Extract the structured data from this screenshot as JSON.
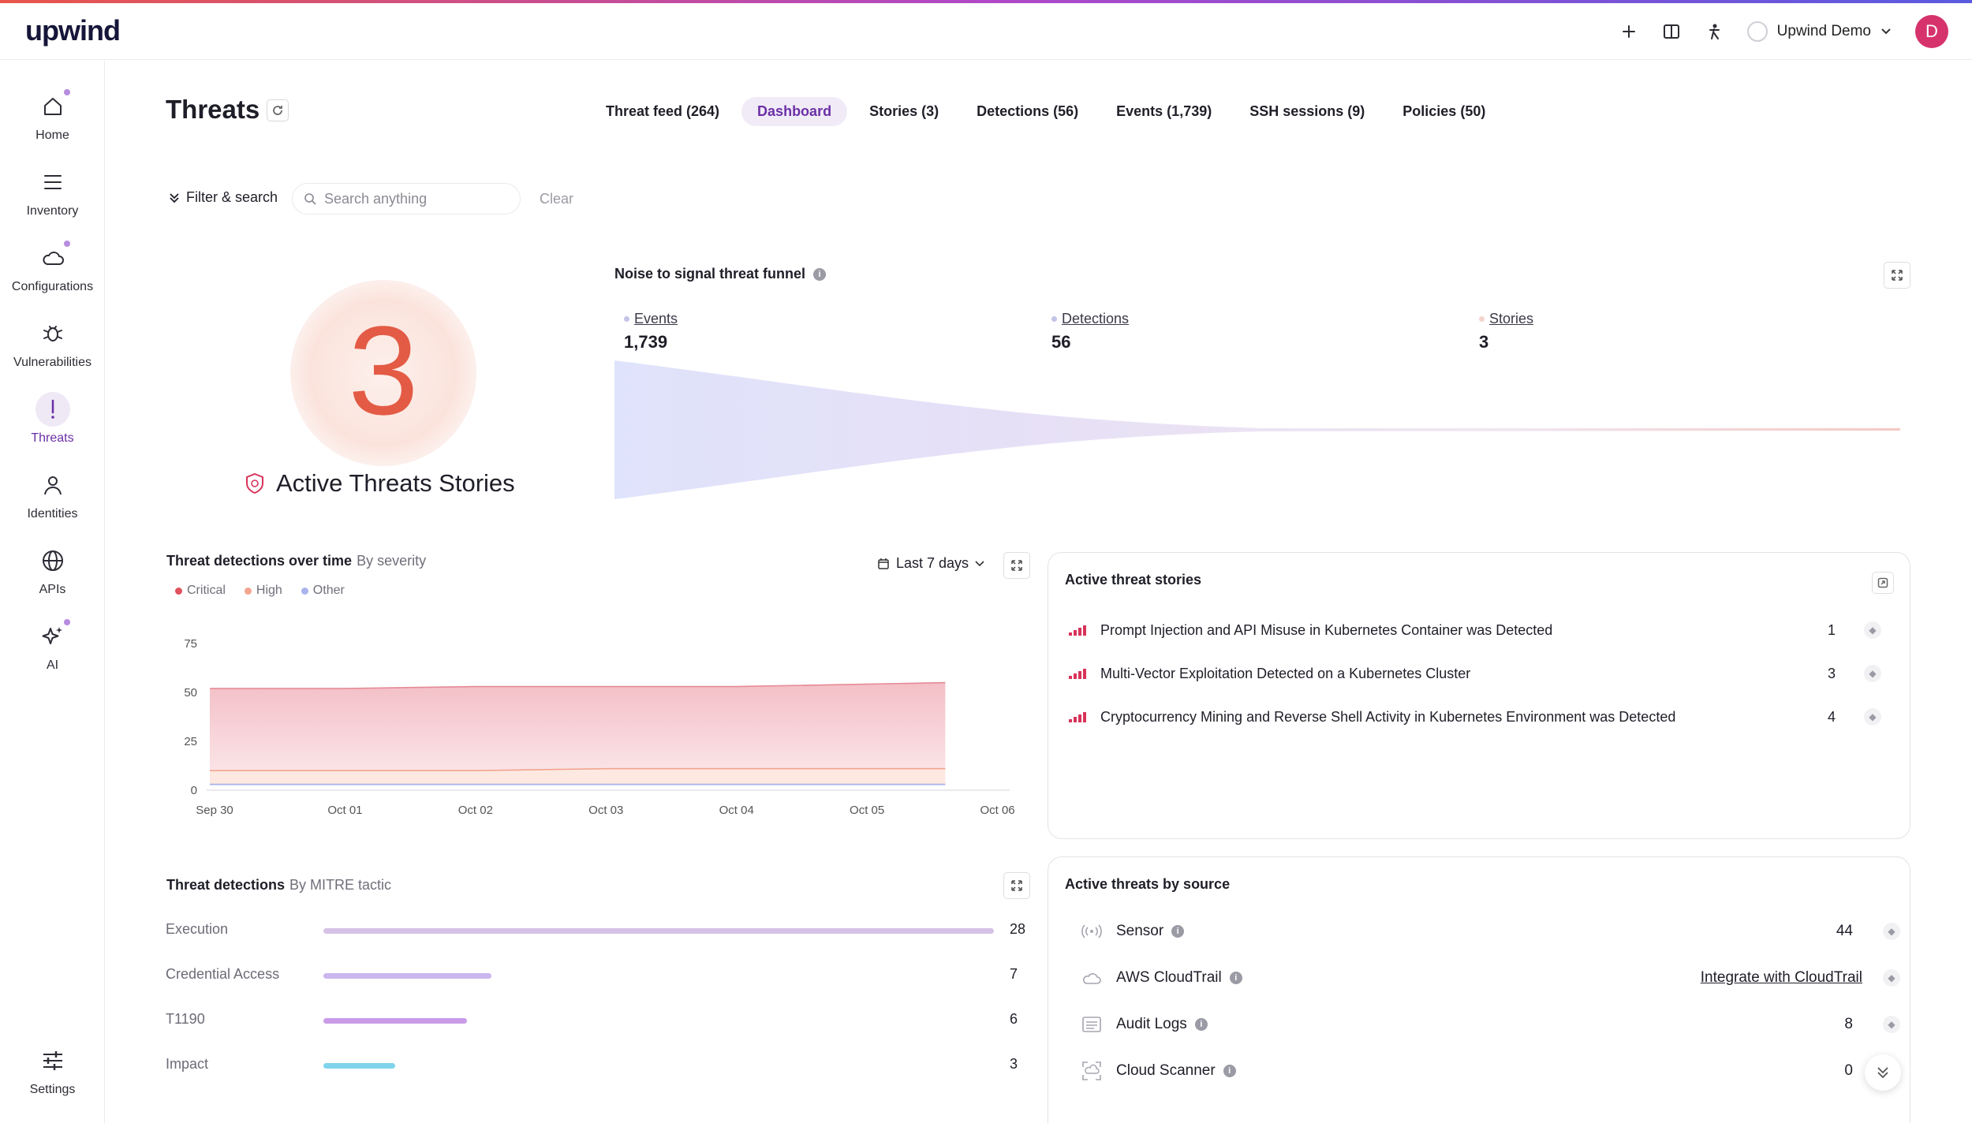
{
  "app": {
    "logo_text": "upwind",
    "org_name": "Upwind Demo",
    "avatar_letter": "D"
  },
  "sidebar": {
    "items": [
      {
        "label": "Home",
        "icon": "home-icon"
      },
      {
        "label": "Inventory",
        "icon": "list-icon"
      },
      {
        "label": "Configurations",
        "icon": "cloud-icon"
      },
      {
        "label": "Vulnerabilities",
        "icon": "bug-icon"
      },
      {
        "label": "Threats",
        "icon": "exclamation-icon"
      },
      {
        "label": "Identities",
        "icon": "person-icon"
      },
      {
        "label": "APIs",
        "icon": "globe-icon"
      },
      {
        "label": "AI",
        "icon": "sparkle-icon"
      }
    ],
    "settings_label": "Settings"
  },
  "header": {
    "title": "Threats",
    "tabs": [
      {
        "label": "Threat feed (264)"
      },
      {
        "label": "Dashboard"
      },
      {
        "label": "Stories (3)"
      },
      {
        "label": "Detections (56)"
      },
      {
        "label": "Events (1,739)"
      },
      {
        "label": "SSH sessions (9)"
      },
      {
        "label": "Policies (50)"
      }
    ],
    "active_tab": "Dashboard"
  },
  "filter": {
    "toggle_label": "Filter & search",
    "search_placeholder": "Search anything",
    "clear_label": "Clear"
  },
  "summary": {
    "active_count": "3",
    "label": "Active Threats Stories"
  },
  "funnel": {
    "title": "Noise to signal threat funnel",
    "stages": [
      {
        "label": "Events",
        "value": "1,739"
      },
      {
        "label": "Detections",
        "value": "56"
      },
      {
        "label": "Stories",
        "value": "3"
      }
    ]
  },
  "detections_over_time": {
    "title": "Threat detections over time",
    "subtitle": "By severity",
    "range": "Last 7 days",
    "legend": [
      {
        "label": "Critical",
        "color": "#e0525e"
      },
      {
        "label": "High",
        "color": "#f2a58e"
      },
      {
        "label": "Other",
        "color": "#a9b4ee"
      }
    ]
  },
  "chart_data": {
    "type": "area",
    "x": [
      "Sep 30",
      "Oct 01",
      "Oct 02",
      "Oct 03",
      "Oct 04",
      "Oct 05",
      "Oct 06"
    ],
    "categories": [
      "Sep 30",
      "Oct 01",
      "Oct 02",
      "Oct 03",
      "Oct 04",
      "Oct 05",
      "Oct 06"
    ],
    "series": [
      {
        "name": "Critical",
        "values": [
          52,
          52,
          53,
          53,
          53,
          55,
          null
        ]
      },
      {
        "name": "High",
        "values": [
          10,
          10,
          10,
          11,
          11,
          11,
          null
        ]
      },
      {
        "name": "Other",
        "values": [
          3,
          3,
          3,
          3,
          3,
          3,
          null
        ]
      }
    ],
    "yticks": [
      0,
      25,
      50,
      75
    ],
    "ylim": [
      0,
      75
    ],
    "grid": false
  },
  "active_stories": {
    "title": "Active threat stories",
    "items": [
      {
        "text": "Prompt Injection and API Misuse in Kubernetes Container was Detected",
        "count": "1"
      },
      {
        "text": "Multi-Vector Exploitation Detected on a Kubernetes Cluster",
        "count": "3"
      },
      {
        "text": "Cryptocurrency Mining and Reverse Shell Activity in Kubernetes Environment was Detected",
        "count": "4"
      }
    ]
  },
  "mitre": {
    "title": "Threat detections",
    "subtitle": "By MITRE tactic",
    "rows": [
      {
        "label": "Execution",
        "count": 28,
        "color": "#d6c2e6"
      },
      {
        "label": "Credential Access",
        "count": 7,
        "color": "#cbb6ee"
      },
      {
        "label": "T1190",
        "count": 6,
        "color": "#c99be8"
      },
      {
        "label": "Impact",
        "count": 3,
        "color": "#7fd4ec"
      }
    ],
    "max": 28
  },
  "sources": {
    "title": "Active threats by source",
    "items": [
      {
        "name": "Sensor",
        "value": "44",
        "icon": "signal-icon"
      },
      {
        "name": "AWS CloudTrail",
        "link": "Integrate with CloudTrail",
        "icon": "cloud-icon"
      },
      {
        "name": "Audit Logs",
        "value": "8",
        "icon": "log-icon"
      },
      {
        "name": "Cloud Scanner",
        "value": "0",
        "icon": "scanner-icon"
      }
    ]
  }
}
